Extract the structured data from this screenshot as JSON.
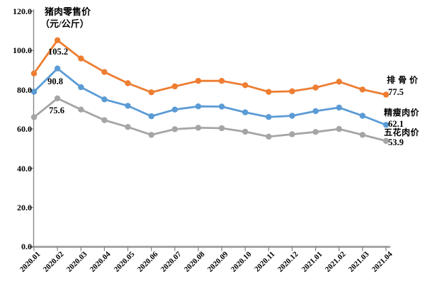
{
  "chart_data": {
    "type": "line",
    "title": "猪肉零售价（元/公斤）",
    "title_line1": "猪肉零售价",
    "title_line2": "（元/公斤）",
    "xlabel": "",
    "ylabel": "元/公斤",
    "ylim": [
      0,
      120
    ],
    "ytick_step": 20,
    "yticks": [
      "0.0",
      "20.0",
      "40.0",
      "60.0",
      "80.0",
      "100.0",
      "120.0"
    ],
    "grid": false,
    "legend_position": "right-of-line-end",
    "categories": [
      "2020.01",
      "2020.02",
      "2020.03",
      "2020.04",
      "2020.05",
      "2020.06",
      "2020.07",
      "2020.08",
      "2020.09",
      "2020.10",
      "2020.11",
      "2020.12",
      "2021.01",
      "2021.02",
      "2021.03",
      "2021.04"
    ],
    "series": [
      {
        "name": "排骨价",
        "color": "#ED7D31",
        "values": [
          88.3,
          105.2,
          95.9,
          89.0,
          83.3,
          78.7,
          81.7,
          84.5,
          84.5,
          82.3,
          78.9,
          79.2,
          81.1,
          84.1,
          80.1,
          77.5
        ],
        "peak_label": "105.2",
        "end_label": "77.5"
      },
      {
        "name": "精瘦肉价",
        "color": "#5B9BD5",
        "values": [
          79.0,
          90.8,
          81.3,
          75.1,
          71.8,
          66.5,
          69.9,
          71.5,
          71.4,
          68.5,
          66.1,
          66.7,
          69.1,
          70.9,
          66.7,
          62.1
        ],
        "peak_label": "90.8",
        "end_label": "62.1"
      },
      {
        "name": "五花肉价",
        "color": "#A5A5A5",
        "values": [
          66.0,
          75.6,
          69.9,
          64.5,
          61.0,
          57.0,
          59.9,
          60.6,
          60.4,
          58.6,
          56.1,
          57.3,
          58.5,
          60.0,
          57.0,
          53.9
        ],
        "peak_label": "75.6",
        "end_label": "53.9"
      }
    ],
    "axis_colors": {
      "y_axis": "#808080",
      "x_axis": "#A6A6A6",
      "ticks": "#7F7F7F"
    }
  }
}
